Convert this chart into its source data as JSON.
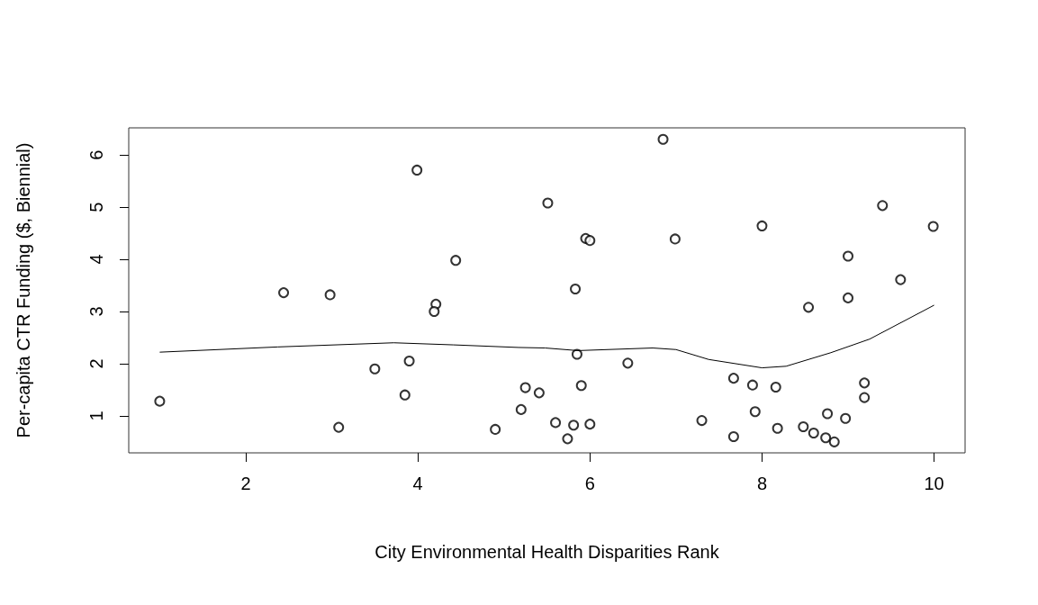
{
  "chart_data": {
    "type": "scatter",
    "xlabel": "City Environmental Health Disparities Rank",
    "ylabel": "Per-capita CTR Funding ($, Biennial)",
    "xlim": [
      0.64,
      10.36
    ],
    "xticks": [
      2,
      4,
      6,
      8,
      10
    ],
    "ylim": [
      0.29,
      6.52
    ],
    "yticks": [
      1,
      2,
      3,
      4,
      5,
      6
    ],
    "grid": false,
    "series": [
      {
        "marker": "circle",
        "color": "#000000",
        "x": [
          1,
          2.44,
          2.98,
          3.08,
          3.5,
          3.9,
          3.85,
          3.99,
          4.21,
          4.19,
          4.44,
          4.9,
          5.2,
          5.25,
          5.41,
          5.51,
          5.6,
          5.74,
          5.81,
          6.0,
          5.83,
          5.85,
          5.9,
          5.95,
          6.0,
          6.44,
          6.85,
          6.99,
          7.3,
          7.67,
          7.67,
          7.89,
          7.92,
          8.0,
          8.16,
          8.18,
          8.48,
          8.54,
          8.6,
          8.74,
          8.76,
          8.84,
          8.97,
          9.0,
          9.0,
          9.19,
          9.19,
          9.4,
          9.61,
          9.99
        ],
        "values": [
          1.28,
          3.36,
          3.32,
          0.78,
          1.9,
          2.05,
          1.4,
          5.71,
          3.14,
          3.0,
          3.98,
          0.74,
          1.12,
          1.54,
          1.44,
          5.08,
          0.87,
          0.56,
          0.82,
          0.84,
          3.43,
          2.18,
          1.58,
          4.4,
          4.36,
          2.01,
          6.3,
          4.39,
          0.91,
          1.72,
          0.6,
          1.59,
          1.08,
          4.64,
          1.55,
          0.76,
          0.79,
          3.08,
          0.67,
          0.58,
          1.04,
          0.5,
          0.95,
          4.06,
          3.26,
          1.63,
          1.35,
          5.03,
          3.61,
          4.63
        ]
      },
      {
        "type": "line",
        "marker": "none",
        "color": "#000000",
        "line_style": "solid",
        "x": [
          1.0,
          2.37,
          3.72,
          4.41,
          5.17,
          5.48,
          5.86,
          6.73,
          7.0,
          7.38,
          8.0,
          8.28,
          8.8,
          9.25,
          10.0
        ],
        "values": [
          2.22,
          2.32,
          2.4,
          2.36,
          2.31,
          2.3,
          2.25,
          2.3,
          2.27,
          2.08,
          1.92,
          1.95,
          2.21,
          2.47,
          3.12
        ]
      }
    ]
  }
}
